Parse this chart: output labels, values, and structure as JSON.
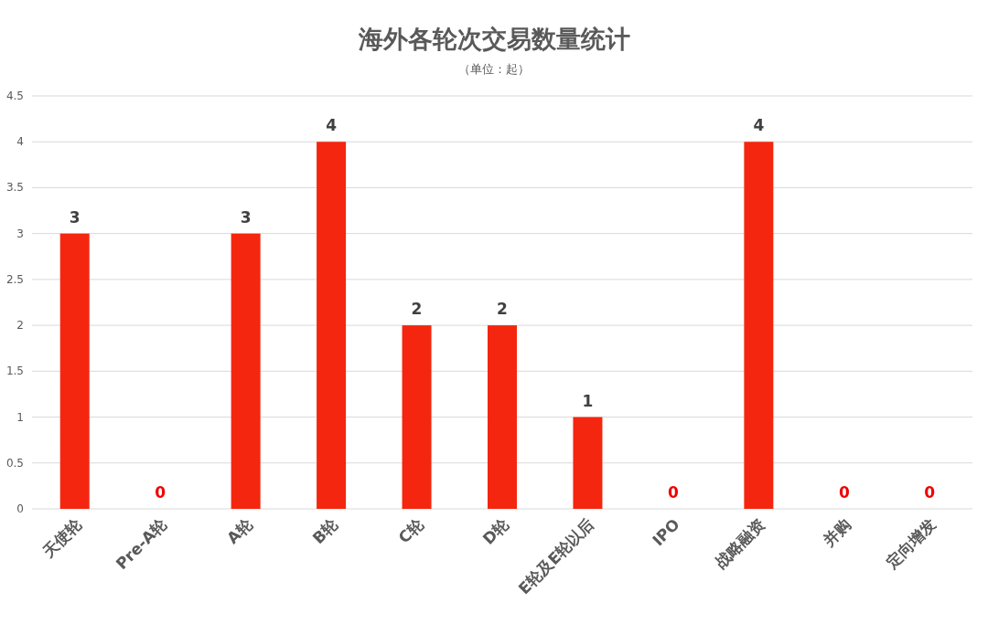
{
  "chart_data": {
    "type": "bar",
    "title": "海外各轮次交易数量统计",
    "subtitle": "（单位：起）",
    "categories": [
      "天使轮",
      "Pre-A轮",
      "A轮",
      "B轮",
      "C轮",
      "D轮",
      "E轮及E轮以后",
      "IPO",
      "战略融资",
      "并购",
      "定向增发"
    ],
    "values": [
      3,
      0,
      3,
      4,
      2,
      2,
      1,
      0,
      4,
      0,
      0
    ],
    "color": "#f5260f",
    "ylim": [
      0,
      4.5
    ],
    "yticks": [
      0,
      0.5,
      1,
      1.5,
      2,
      2.5,
      3,
      3.5,
      4,
      4.5
    ],
    "grid": "y",
    "data_labels": true
  }
}
